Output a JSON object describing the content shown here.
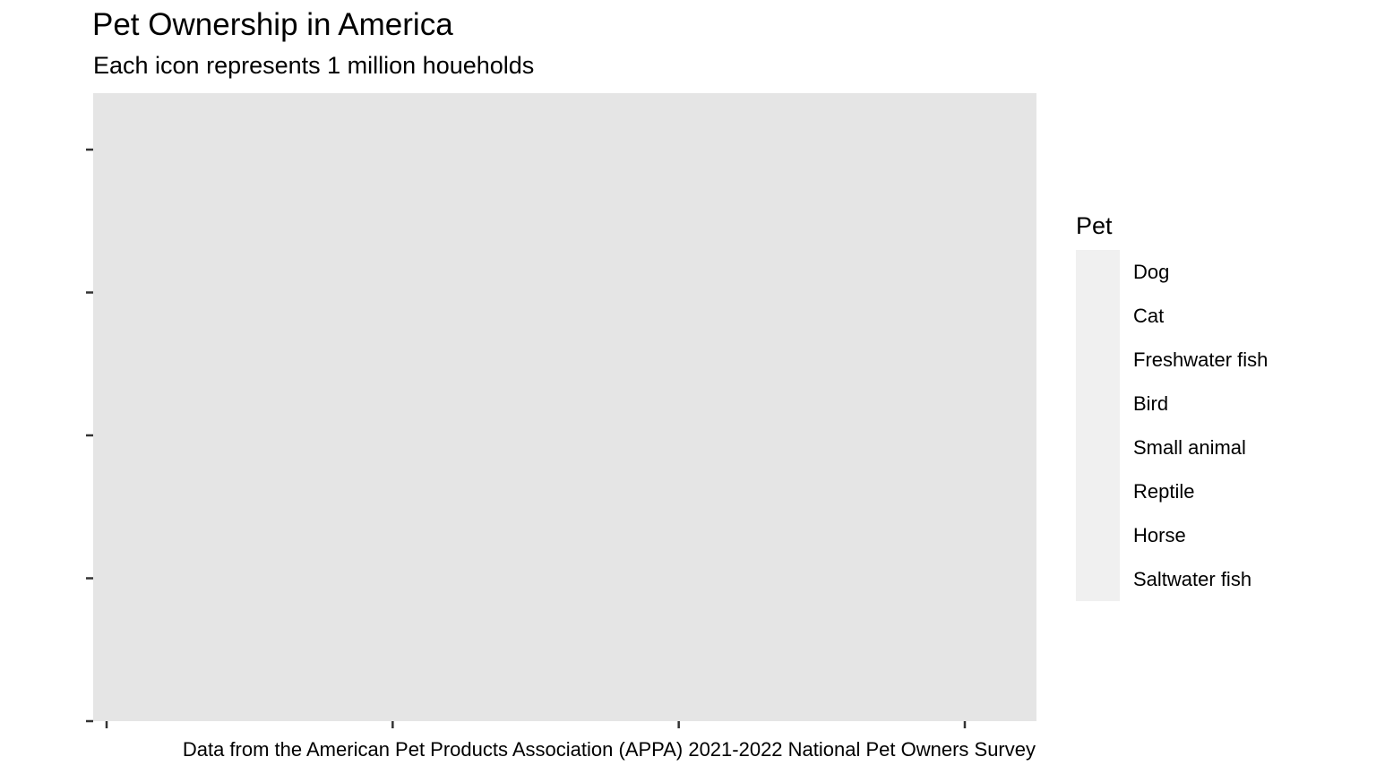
{
  "chart_data": {
    "type": "scatter",
    "title": "Pet Ownership in America",
    "subtitle": "Each icon represents 1 million houeholds",
    "caption": "Data from the American Pet Products Association (APPA) 2021-2022 National Pet Owners Survey",
    "xlabel": "",
    "ylabel": "",
    "x_tick_count": 4,
    "y_tick_count": 5,
    "x_tick_labels": [],
    "y_tick_labels": [],
    "grid": false,
    "panel_color": "#e5e5e5",
    "legend_placement": "right",
    "legend": {
      "title": "Pet",
      "key_color": "#f0f0f0",
      "items": [
        {
          "label": "Dog"
        },
        {
          "label": "Cat"
        },
        {
          "label": "Freshwater fish"
        },
        {
          "label": "Bird"
        },
        {
          "label": "Small animal"
        },
        {
          "label": "Reptile"
        },
        {
          "label": "Horse"
        },
        {
          "label": "Saltwater fish"
        }
      ]
    },
    "series": []
  }
}
